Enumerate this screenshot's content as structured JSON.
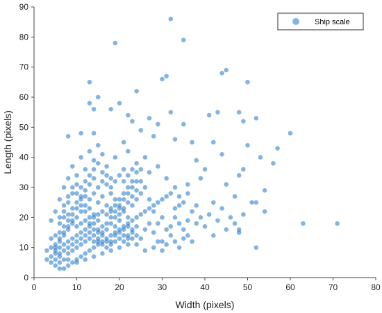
{
  "chart_data": {
    "type": "scatter",
    "title": "",
    "xlabel": "Width (pixels)",
    "ylabel": "Length (pixels)",
    "xlim": [
      0,
      80
    ],
    "ylim": [
      0,
      90
    ],
    "x_ticks": [
      0,
      10,
      20,
      30,
      40,
      50,
      60,
      70,
      80
    ],
    "y_ticks": [
      0,
      10,
      20,
      30,
      40,
      50,
      60,
      70,
      80,
      90
    ],
    "grid": false,
    "legend_position": "top-right",
    "series": [
      {
        "name": "Ship scale",
        "color": "#1f77c4",
        "points": [
          [
            32,
            86
          ],
          [
            35,
            79
          ],
          [
            19,
            78
          ],
          [
            31,
            67
          ],
          [
            44,
            68
          ],
          [
            45,
            69
          ],
          [
            50,
            65
          ],
          [
            30,
            66
          ],
          [
            13,
            65
          ],
          [
            24,
            62
          ],
          [
            15,
            60
          ],
          [
            20,
            58
          ],
          [
            13,
            58
          ],
          [
            14,
            56
          ],
          [
            18,
            56
          ],
          [
            32,
            55
          ],
          [
            43,
            55
          ],
          [
            48,
            55
          ],
          [
            22,
            54
          ],
          [
            27,
            53
          ],
          [
            41,
            54
          ],
          [
            49,
            52
          ],
          [
            52,
            53
          ],
          [
            23,
            52
          ],
          [
            60,
            48
          ],
          [
            57,
            43
          ],
          [
            35,
            51
          ],
          [
            29,
            51
          ],
          [
            25,
            49
          ],
          [
            11,
            48
          ],
          [
            14,
            48
          ],
          [
            8,
            47
          ],
          [
            21,
            45
          ],
          [
            28,
            47
          ],
          [
            33,
            46
          ],
          [
            37,
            45
          ],
          [
            42,
            45
          ],
          [
            50,
            44
          ],
          [
            44,
            41
          ],
          [
            53,
            40
          ],
          [
            56,
            38
          ],
          [
            49,
            36
          ],
          [
            48,
            34
          ],
          [
            54,
            29
          ],
          [
            51,
            25
          ],
          [
            52,
            25
          ],
          [
            54,
            22
          ],
          [
            49,
            21
          ],
          [
            48,
            16
          ],
          [
            48,
            15
          ],
          [
            63,
            18
          ],
          [
            71,
            18
          ],
          [
            52,
            10
          ],
          [
            42,
            14
          ],
          [
            38,
            18
          ],
          [
            45,
            31
          ],
          [
            47,
            27
          ],
          [
            40,
            36
          ],
          [
            38,
            39
          ],
          [
            39,
            33
          ],
          [
            36,
            28
          ],
          [
            34,
            24
          ],
          [
            33,
            30
          ],
          [
            31,
            33
          ],
          [
            29,
            37
          ],
          [
            27,
            35
          ],
          [
            26,
            40
          ],
          [
            24,
            38
          ],
          [
            22,
            42
          ],
          [
            21,
            36
          ],
          [
            19,
            40
          ],
          [
            18,
            33
          ],
          [
            17,
            37
          ],
          [
            16,
            41
          ],
          [
            15,
            44
          ],
          [
            14,
            39
          ],
          [
            13,
            42
          ],
          [
            12,
            36
          ],
          [
            11,
            40
          ],
          [
            10,
            34
          ],
          [
            9,
            37
          ],
          [
            8,
            33
          ],
          [
            7,
            30
          ],
          [
            6,
            26
          ],
          [
            5,
            22
          ],
          [
            4,
            19
          ],
          [
            4,
            13
          ],
          [
            3,
            9
          ],
          [
            3,
            6
          ],
          [
            4,
            5
          ],
          [
            5,
            4
          ],
          [
            6,
            3
          ],
          [
            7,
            3
          ],
          [
            8,
            4
          ],
          [
            9,
            5
          ],
          [
            10,
            6
          ],
          [
            11,
            7
          ],
          [
            12,
            8
          ],
          [
            13,
            9
          ],
          [
            14,
            10
          ],
          [
            15,
            11
          ],
          [
            16,
            12
          ],
          [
            17,
            13
          ],
          [
            18,
            14
          ],
          [
            19,
            15
          ],
          [
            20,
            16
          ],
          [
            21,
            17
          ],
          [
            22,
            18
          ],
          [
            23,
            19
          ],
          [
            24,
            20
          ],
          [
            25,
            21
          ],
          [
            26,
            22
          ],
          [
            27,
            23
          ],
          [
            28,
            24
          ],
          [
            29,
            25
          ],
          [
            30,
            26
          ],
          [
            31,
            27
          ],
          [
            32,
            28
          ],
          [
            33,
            20
          ],
          [
            34,
            18
          ],
          [
            35,
            16
          ],
          [
            36,
            14
          ],
          [
            37,
            12
          ],
          [
            30,
            12
          ],
          [
            28,
            10
          ],
          [
            26,
            9
          ],
          [
            24,
            11
          ],
          [
            22,
            13
          ],
          [
            20,
            10
          ],
          [
            18,
            9
          ],
          [
            16,
            8
          ],
          [
            14,
            7
          ],
          [
            12,
            6
          ],
          [
            10,
            5
          ],
          [
            8,
            6
          ],
          [
            6,
            7
          ],
          [
            5,
            8
          ],
          [
            5,
            10
          ],
          [
            6,
            12
          ],
          [
            7,
            14
          ],
          [
            8,
            16
          ],
          [
            9,
            18
          ],
          [
            10,
            20
          ],
          [
            11,
            22
          ],
          [
            12,
            24
          ],
          [
            13,
            26
          ],
          [
            14,
            28
          ],
          [
            15,
            30
          ],
          [
            16,
            32
          ],
          [
            17,
            34
          ],
          [
            18,
            28
          ],
          [
            19,
            26
          ],
          [
            20,
            24
          ],
          [
            21,
            22
          ],
          [
            22,
            20
          ],
          [
            23,
            24
          ],
          [
            24,
            26
          ],
          [
            25,
            28
          ],
          [
            26,
            30
          ],
          [
            27,
            26
          ],
          [
            28,
            22
          ],
          [
            29,
            18
          ],
          [
            30,
            20
          ],
          [
            31,
            16
          ],
          [
            32,
            14
          ],
          [
            33,
            12
          ],
          [
            34,
            10
          ],
          [
            35,
            13
          ],
          [
            36,
            19
          ],
          [
            37,
            22
          ],
          [
            38,
            24
          ],
          [
            39,
            20
          ],
          [
            40,
            17
          ],
          [
            41,
            21
          ],
          [
            42,
            25
          ],
          [
            43,
            19
          ],
          [
            44,
            23
          ],
          [
            45,
            16
          ],
          [
            46,
            20
          ],
          [
            47,
            18
          ],
          [
            7,
            22
          ],
          [
            8,
            25
          ],
          [
            9,
            28
          ],
          [
            10,
            31
          ],
          [
            11,
            27
          ],
          [
            12,
            29
          ],
          [
            13,
            31
          ],
          [
            14,
            33
          ],
          [
            15,
            25
          ],
          [
            16,
            27
          ],
          [
            17,
            24
          ],
          [
            18,
            22
          ],
          [
            19,
            20
          ],
          [
            20,
            19
          ],
          [
            21,
            14
          ],
          [
            22,
            11
          ],
          [
            23,
            15
          ],
          [
            24,
            14
          ],
          [
            25,
            13
          ],
          [
            26,
            16
          ],
          [
            27,
            18
          ],
          [
            28,
            15
          ],
          [
            29,
            12
          ],
          [
            30,
            9
          ],
          [
            31,
            11
          ],
          [
            32,
            17
          ],
          [
            33,
            23
          ],
          [
            34,
            27
          ],
          [
            35,
            25
          ],
          [
            36,
            31
          ],
          [
            6,
            18
          ],
          [
            7,
            20
          ],
          [
            8,
            21
          ],
          [
            9,
            23
          ],
          [
            10,
            25
          ],
          [
            11,
            26
          ],
          [
            12,
            27
          ],
          [
            13,
            23
          ],
          [
            14,
            21
          ],
          [
            15,
            19
          ],
          [
            16,
            17
          ],
          [
            17,
            16
          ],
          [
            18,
            18
          ],
          [
            19,
            17
          ],
          [
            20,
            21
          ],
          [
            21,
            23
          ],
          [
            22,
            25
          ],
          [
            23,
            27
          ],
          [
            24,
            29
          ],
          [
            25,
            32
          ],
          [
            5,
            14
          ],
          [
            6,
            15
          ],
          [
            7,
            17
          ],
          [
            8,
            19
          ],
          [
            9,
            21
          ],
          [
            10,
            23
          ],
          [
            11,
            24
          ],
          [
            12,
            22
          ],
          [
            13,
            20
          ],
          [
            14,
            18
          ],
          [
            15,
            16
          ],
          [
            16,
            15
          ],
          [
            17,
            18
          ],
          [
            18,
            20
          ],
          [
            19,
            22
          ],
          [
            20,
            23
          ],
          [
            21,
            26
          ],
          [
            22,
            28
          ],
          [
            23,
            30
          ],
          [
            24,
            32
          ],
          [
            4,
            7
          ],
          [
            5,
            9
          ],
          [
            6,
            10
          ],
          [
            7,
            11
          ],
          [
            8,
            12
          ],
          [
            9,
            13
          ],
          [
            10,
            14
          ],
          [
            11,
            15
          ],
          [
            12,
            16
          ],
          [
            13,
            17
          ],
          [
            14,
            16
          ],
          [
            15,
            15
          ],
          [
            16,
            14
          ],
          [
            17,
            12
          ],
          [
            18,
            11
          ],
          [
            19,
            12
          ],
          [
            20,
            13
          ],
          [
            21,
            12
          ],
          [
            22,
            14
          ],
          [
            23,
            13
          ],
          [
            4,
            10
          ],
          [
            5,
            11
          ],
          [
            6,
            13
          ],
          [
            7,
            15
          ],
          [
            8,
            17
          ],
          [
            9,
            19
          ],
          [
            10,
            17
          ],
          [
            11,
            18
          ],
          [
            12,
            19
          ],
          [
            13,
            18
          ],
          [
            14,
            20
          ],
          [
            15,
            21
          ],
          [
            16,
            22
          ],
          [
            17,
            21
          ],
          [
            18,
            23
          ],
          [
            19,
            24
          ],
          [
            20,
            26
          ],
          [
            21,
            28
          ],
          [
            22,
            30
          ],
          [
            23,
            32
          ],
          [
            5,
            6
          ],
          [
            6,
            8
          ],
          [
            7,
            9
          ],
          [
            8,
            10
          ],
          [
            9,
            11
          ],
          [
            10,
            12
          ],
          [
            11,
            13
          ],
          [
            12,
            14
          ],
          [
            13,
            15
          ],
          [
            14,
            14
          ],
          [
            15,
            13
          ],
          [
            16,
            11
          ],
          [
            17,
            10
          ],
          [
            18,
            12
          ],
          [
            19,
            14
          ],
          [
            20,
            15
          ],
          [
            21,
            16
          ],
          [
            22,
            17
          ],
          [
            23,
            16
          ],
          [
            24,
            17
          ],
          [
            6,
            5
          ],
          [
            7,
            6
          ],
          [
            8,
            8
          ],
          [
            9,
            9
          ],
          [
            10,
            10
          ],
          [
            11,
            11
          ],
          [
            12,
            12
          ],
          [
            13,
            13
          ],
          [
            14,
            12
          ],
          [
            15,
            12
          ],
          [
            6,
            20
          ],
          [
            7,
            24
          ],
          [
            8,
            27
          ],
          [
            9,
            30
          ],
          [
            10,
            28
          ],
          [
            11,
            30
          ],
          [
            12,
            32
          ],
          [
            13,
            34
          ],
          [
            14,
            36
          ],
          [
            15,
            38
          ],
          [
            16,
            35
          ],
          [
            17,
            31
          ],
          [
            18,
            30
          ],
          [
            19,
            32
          ],
          [
            20,
            34
          ],
          [
            21,
            32
          ],
          [
            22,
            34
          ],
          [
            23,
            36
          ],
          [
            24,
            35
          ],
          [
            25,
            36
          ]
        ]
      }
    ]
  }
}
